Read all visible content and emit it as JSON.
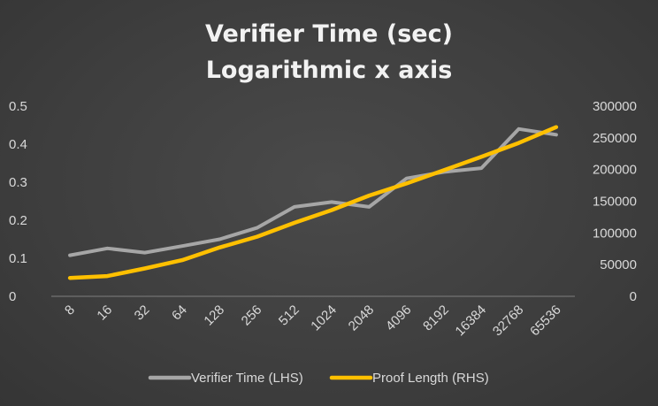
{
  "chart_data": {
    "type": "line",
    "title": "Verifier Time (sec)",
    "subtitle": "Logarithmic x axis",
    "categories": [
      "8",
      "16",
      "32",
      "64",
      "128",
      "256",
      "512",
      "1024",
      "2048",
      "4096",
      "8192",
      "16384",
      "32768",
      "65536"
    ],
    "y_left": {
      "ylim": [
        0,
        0.5
      ],
      "ticks": [
        "0",
        "0.1",
        "0.2",
        "0.3",
        "0.4",
        "0.5"
      ]
    },
    "y_right": {
      "ylim": [
        0,
        300000
      ],
      "ticks": [
        "0",
        "50000",
        "100000",
        "150000",
        "200000",
        "250000",
        "300000"
      ]
    },
    "series": [
      {
        "name": "Verifier Time (LHS)",
        "axis": "left",
        "color": "#a6a6a6",
        "values": [
          0.108,
          0.126,
          0.115,
          0.132,
          0.15,
          0.18,
          0.235,
          0.248,
          0.235,
          0.31,
          0.327,
          0.337,
          0.44,
          0.425
        ]
      },
      {
        "name": "Proof Length (RHS)",
        "axis": "right",
        "color": "#ffc000",
        "values": [
          29000,
          32000,
          44000,
          57000,
          77000,
          94000,
          116000,
          136000,
          159000,
          178000,
          199000,
          220000,
          242000,
          267000
        ]
      }
    ],
    "legend_position": "bottom",
    "grid": false
  }
}
